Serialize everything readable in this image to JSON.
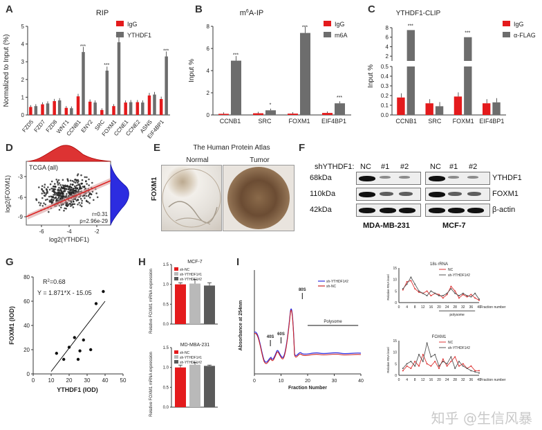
{
  "panels": {
    "A": "A",
    "B": "B",
    "C": "C",
    "D": "D",
    "E": "E",
    "F": "F",
    "G": "G",
    "H": "H",
    "I": "I"
  },
  "colors": {
    "red": "#e41a1c",
    "gray": "#6d6d6d",
    "lightgray": "#b9b9b9",
    "darkgray": "#5a5a5a",
    "blue": "#2c2ce0",
    "scatterRed": "#d33"
  },
  "panelA": {
    "title": "RIP",
    "ylabel": "Normalized to Input (%)",
    "legend": [
      "IgG",
      "YTHDF1"
    ],
    "chart_data": {
      "type": "bar",
      "categories": [
        "FZD5",
        "FZD7",
        "FZD8",
        "WNT1",
        "CCNB1",
        "ENY2",
        "SRC",
        "FOXM1",
        "CCNE1",
        "CCNE2",
        "ASNS",
        "EIF4BP1"
      ],
      "ylim": [
        0,
        5
      ],
      "yticks": [
        0,
        1,
        2,
        3,
        4,
        5
      ],
      "series": [
        {
          "name": "IgG",
          "values": [
            0.45,
            0.6,
            0.78,
            0.4,
            1.05,
            0.75,
            0.28,
            0.5,
            0.7,
            0.72,
            1.1,
            0.9
          ]
        },
        {
          "name": "YTHDF1",
          "values": [
            0.5,
            0.65,
            0.82,
            0.38,
            3.55,
            0.7,
            2.5,
            4.1,
            0.72,
            0.7,
            1.15,
            3.3
          ]
        }
      ],
      "sig": [
        "",
        "",
        "",
        "",
        "***",
        "",
        "***",
        "***",
        "",
        "",
        "",
        "***"
      ]
    }
  },
  "panelB": {
    "title_pre": "m",
    "title_sup": "6",
    "title_post": "A-IP",
    "ylabel": "Input %",
    "legend": [
      "IgG",
      "m6A"
    ],
    "chart_data": {
      "type": "bar",
      "categories": [
        "CCNB1",
        "SRC",
        "FOXM1",
        "EIF4BP1"
      ],
      "ylim": [
        0,
        8
      ],
      "yticks": [
        0,
        2,
        4,
        6,
        8
      ],
      "series": [
        {
          "name": "IgG",
          "values": [
            0.1,
            0.15,
            0.12,
            0.18
          ]
        },
        {
          "name": "m6A",
          "values": [
            4.9,
            0.42,
            7.4,
            1.05
          ]
        }
      ],
      "sig": [
        "***",
        "*",
        "***",
        "***"
      ]
    }
  },
  "panelC": {
    "title": "YTHDF1-CLIP",
    "ylabel": "Input %",
    "legend": [
      "IgG",
      "α-FLAG"
    ],
    "chart_data": {
      "type": "bar",
      "categories": [
        "CCNB1",
        "SRC",
        "FOXM1",
        "EIF4BP1"
      ],
      "yticks_low": [
        0.0,
        0.1,
        0.2,
        0.3,
        0.4,
        0.5
      ],
      "yticks_high": [
        2,
        4,
        6,
        8
      ],
      "series": [
        {
          "name": "IgG",
          "values": [
            0.18,
            0.12,
            0.19,
            0.12
          ]
        },
        {
          "name": "α-FLAG",
          "values": [
            7.5,
            0.09,
            6.0,
            0.13
          ]
        }
      ],
      "sig": [
        "***",
        "",
        "***",
        ""
      ]
    }
  },
  "panelD": {
    "label": "TCGA (all)",
    "stat_r": "r=0.31",
    "stat_p": "p=2.96e-29",
    "xlabel": "log2(YTHDF1)",
    "ylabel": "log2(FOXM1)",
    "chart_data": {
      "type": "scatter",
      "xticks": [
        -6,
        -4,
        -2
      ],
      "yticks": [
        -3,
        -6,
        -9
      ],
      "fit": {
        "slope": 0.31
      }
    }
  },
  "panelE": {
    "title": "The Human Protein Atlas",
    "normal": "Normal",
    "tumor": "Tumor",
    "ylabel": "FOXM1"
  },
  "panelF": {
    "header": "shYTHDF1:",
    "lanes": [
      "NC",
      "#1",
      "#2",
      "NC",
      "#1",
      "#2"
    ],
    "mw": [
      "68kDa",
      "110kDa",
      "42kDa"
    ],
    "proteins": [
      "YTHDF1",
      "FOXM1",
      "β-actin"
    ],
    "cells": [
      "MDA-MB-231",
      "MCF-7"
    ]
  },
  "panelG": {
    "r2_pre": "R",
    "r2_sup": "2",
    "r2_post": "=0.68",
    "eq": "Y = 1.871*X - 15.05",
    "xlabel": "YTHDF1 (IOD)",
    "ylabel": "FOXM1 (IOD)",
    "chart_data": {
      "type": "scatter",
      "xlim": [
        0,
        50
      ],
      "ylim": [
        0,
        80
      ],
      "xticks": [
        0,
        10,
        20,
        30,
        40,
        50
      ],
      "yticks": [
        0,
        20,
        40,
        60,
        80
      ],
      "x": [
        13,
        17,
        20,
        23,
        25,
        26,
        28,
        32,
        35,
        39
      ],
      "y": [
        17,
        12,
        22,
        30,
        12,
        19,
        28,
        20,
        58,
        68
      ]
    }
  },
  "panelH": {
    "top": {
      "title": "MCF-7",
      "ylabel": "Relative FOXM1 mRNA expression",
      "legend": [
        "sh-NC",
        "sh-YTHDF1#1",
        "sh-YTHDF1#2"
      ],
      "chart_data": {
        "type": "bar",
        "ylim": [
          0,
          1.5
        ],
        "yticks": [
          0.0,
          0.5,
          1.0,
          1.5
        ],
        "values": [
          1.0,
          1.02,
          0.97
        ],
        "errors": [
          0.04,
          0.1,
          0.07
        ]
      }
    },
    "bottom": {
      "title": "MD-MBA-231",
      "ylabel": "Relative FOXM1 mRNA expression",
      "legend": [
        "sh-NC",
        "sh-YTHDF1#1",
        "sh-YTHDF1#2"
      ],
      "chart_data": {
        "type": "bar",
        "ylim": [
          0,
          1.5
        ],
        "yticks": [
          0.0,
          0.5,
          1.0,
          1.5
        ],
        "values": [
          1.0,
          1.07,
          1.04
        ],
        "errors": [
          0.06,
          0.05,
          0.02
        ]
      }
    }
  },
  "panelI": {
    "profile": {
      "ylabel": "Absorbance at 254nm",
      "xlabel": "Fraction Number",
      "legend": [
        "sh-YTHDF1#2",
        "sh-NC"
      ],
      "peaks": [
        "40S",
        "60S",
        "80S"
      ],
      "polysome": "Polysome",
      "xticks": [
        0,
        10,
        20,
        30,
        40
      ]
    },
    "rna18s": {
      "title": "18s rRNA",
      "legend": [
        "NC",
        "sh-YTHDF1#2"
      ],
      "ylabel": "Relative RNA level",
      "xlabel": "Fraction number",
      "sub": "polysome",
      "chart_data": {
        "type": "line",
        "x": [
          2,
          4,
          6,
          8,
          10,
          12,
          14,
          16,
          18,
          20,
          22,
          24,
          26,
          28,
          30,
          32,
          34,
          36,
          38,
          40
        ],
        "series": [
          {
            "name": "NC",
            "values": [
              5.5,
              9,
              9.5,
              6,
              4.5,
              4,
              5,
              3,
              4,
              3.5,
              2,
              3.5,
              7,
              5,
              2,
              3.5,
              2.5,
              3.5,
              2,
              1
            ]
          },
          {
            "name": "sh-YTHDF1#2",
            "values": [
              6,
              8,
              11,
              8,
              5,
              4,
              3,
              5,
              4,
              3,
              3,
              4,
              6,
              4,
              3,
              4,
              3,
              2.5,
              4,
              1.5
            ]
          }
        ],
        "xticks": [
          0,
          4,
          8,
          12,
          16,
          20,
          24,
          28,
          32,
          36,
          40
        ],
        "yticks": [
          0,
          5,
          10,
          15
        ],
        "ylim": [
          0,
          15
        ]
      }
    },
    "foxm1": {
      "title": "FOXM1",
      "legend": [
        "NC",
        "sh-YTHDF1#2"
      ],
      "ylabel": "Relative RNA level",
      "xlabel": "Fraction number",
      "chart_data": {
        "type": "line",
        "x": [
          2,
          4,
          6,
          8,
          10,
          12,
          14,
          16,
          18,
          20,
          22,
          24,
          26,
          28,
          30,
          32,
          34,
          36,
          38,
          40
        ],
        "series": [
          {
            "name": "NC",
            "values": [
              2,
              4,
              3,
              6,
              4,
              9,
              5,
              4,
              6,
              3,
              7,
              4,
              6,
              8,
              4,
              5,
              3,
              4,
              2,
              2
            ]
          },
          {
            "name": "sh-YTHDF1#2",
            "values": [
              3,
              5,
              6,
              4,
              9,
              6,
              14,
              8,
              9,
              4,
              6,
              5,
              8,
              3,
              6,
              4,
              3,
              2,
              1.5,
              1
            ]
          }
        ],
        "xticks": [
          0,
          4,
          8,
          12,
          16,
          20,
          24,
          28,
          32,
          36,
          40
        ],
        "yticks": [
          0,
          5,
          10,
          15
        ],
        "ylim": [
          0,
          15
        ]
      }
    }
  },
  "watermark": "知乎 @生信风暴"
}
